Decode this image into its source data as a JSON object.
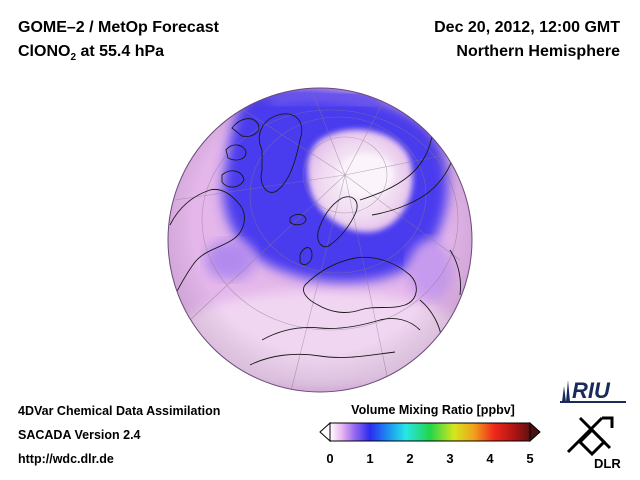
{
  "header": {
    "title_line1": "GOME–2 / MetOp Forecast",
    "title_line2_prefix": "ClONO",
    "title_line2_sub": "2",
    "title_line2_suffix": " at 55.4 hPa",
    "date": "Dec 20, 2012, 12:00 GMT",
    "region": "Northern Hemisphere"
  },
  "footer": {
    "line1": "4DVar Chemical Data Assimilation",
    "line2": "SACADA Version 2.4",
    "line3": "http://wdc.dlr.de"
  },
  "colorbar": {
    "title": "Volume Mixing Ratio [ppbv]",
    "ticks": [
      "0",
      "1",
      "2",
      "3",
      "4",
      "5"
    ],
    "colors": [
      "#ffffff",
      "#e8b6f0",
      "#9a6cf0",
      "#2b2bf0",
      "#1c9bf0",
      "#28e6e6",
      "#22d64a",
      "#d6e61c",
      "#f0a21c",
      "#f0281c",
      "#b01414",
      "#601010"
    ]
  },
  "logos": {
    "riu": "RIU",
    "dlr": "DLR"
  },
  "map": {
    "projection": "orthographic",
    "field_colors": {
      "background": "#e6b8ea",
      "low": "#f7eef7",
      "band": "#4a3aee",
      "band_light": "#8a6cee",
      "coast": "#1a1a1a"
    }
  }
}
